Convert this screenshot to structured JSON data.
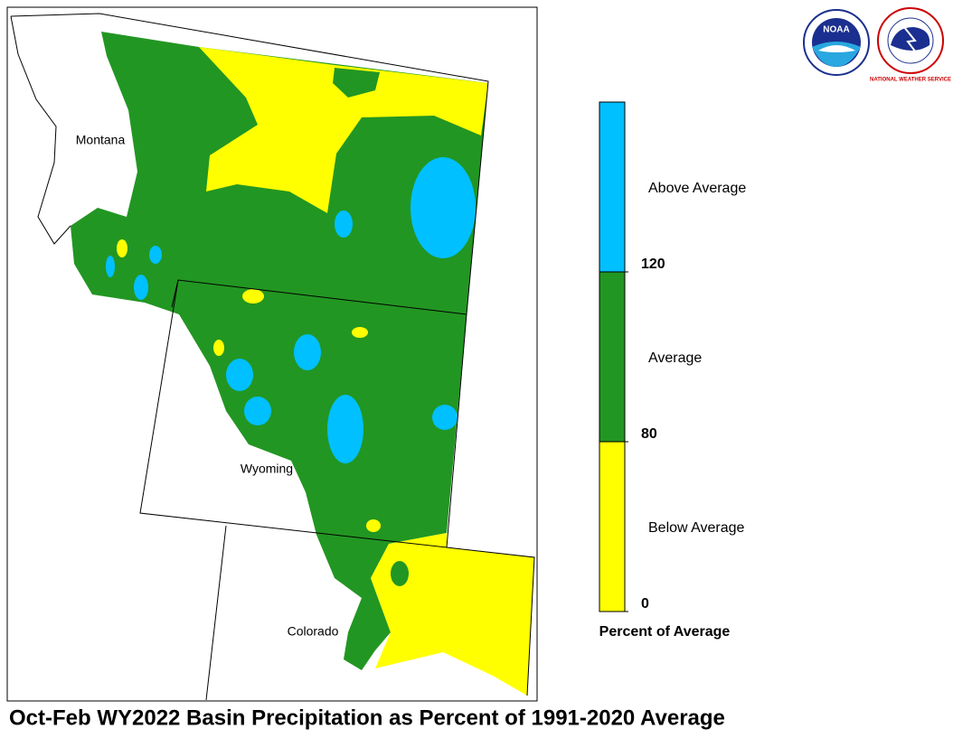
{
  "map": {
    "title": "Oct-Feb WY2022 Basin Precipitation as Percent of 1991-2020 Average",
    "states": [
      "Montana",
      "Wyoming",
      "Colorado"
    ]
  },
  "legend": {
    "title": "Percent of Average",
    "entries": [
      {
        "label": "Below Average",
        "color": "#ffff00"
      },
      {
        "label": "Average",
        "color": "#229622"
      },
      {
        "label": "Above Average",
        "color": "#00c0ff"
      }
    ],
    "ticks": [
      0,
      80,
      120
    ]
  },
  "logos": {
    "noaa": "NOAA",
    "nws": "NATIONAL WEATHER SERVICE"
  }
}
